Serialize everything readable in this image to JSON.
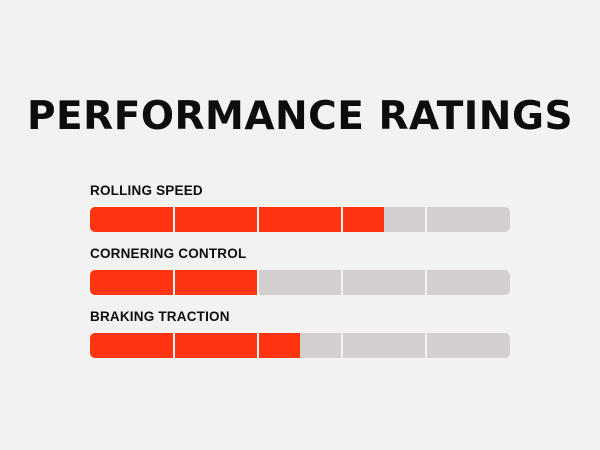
{
  "title": "PERFORMANCE RATINGS",
  "colors": {
    "background": "#f2f2f2",
    "fill": "#ff3411",
    "track": "#d3cfcf",
    "text": "#0d0d0d"
  },
  "segments": 5,
  "ratings": [
    {
      "label": "ROLLING SPEED",
      "level": 0.7
    },
    {
      "label": "CORNERING CONTROL",
      "level": 0.4
    },
    {
      "label": "BRAKING TRACTION",
      "level": 0.5
    }
  ]
}
